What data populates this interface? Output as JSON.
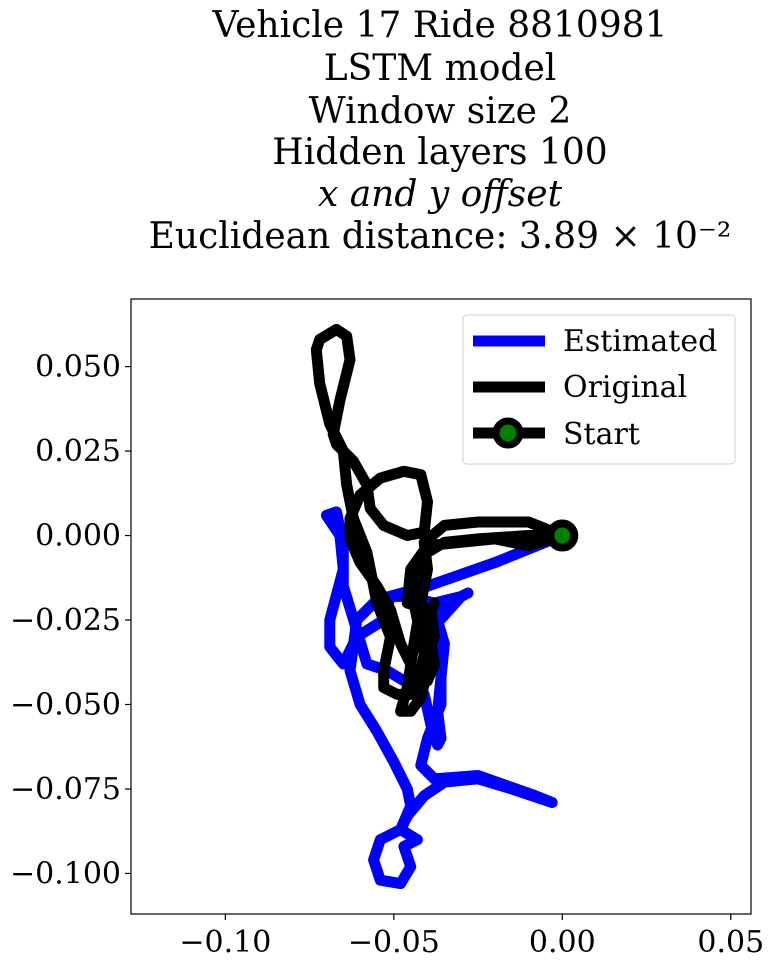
{
  "chart_data": {
    "type": "line",
    "title_lines": [
      "Vehicle 17 Ride 8810981",
      "LSTM model",
      "Window size 2",
      "Hidden layers 100",
      "x and y offset",
      "Euclidean distance: 3.89 × 10⁻²"
    ],
    "xlabel": "",
    "ylabel": "",
    "xlim": [
      -0.128,
      0.056
    ],
    "ylim": [
      -0.112,
      0.07
    ],
    "x_ticks": [
      {
        "value": -0.1,
        "label": "−0.10"
      },
      {
        "value": -0.05,
        "label": "−0.05"
      },
      {
        "value": 0.0,
        "label": "0.00"
      },
      {
        "value": 0.05,
        "label": "0.05"
      }
    ],
    "y_ticks": [
      {
        "value": 0.05,
        "label": "0.050"
      },
      {
        "value": 0.025,
        "label": "0.025"
      },
      {
        "value": 0.0,
        "label": "0.000"
      },
      {
        "value": -0.025,
        "label": "−0.025"
      },
      {
        "value": -0.05,
        "label": "−0.050"
      },
      {
        "value": -0.075,
        "label": "−0.075"
      },
      {
        "value": -0.1,
        "label": "−0.100"
      }
    ],
    "grid": false,
    "legend_position": "top-right",
    "series": [
      {
        "name": "Estimated",
        "color": "#0000ff",
        "points": [
          [
            0.0,
            0.0
          ],
          [
            -0.02,
            -0.008
          ],
          [
            -0.04,
            -0.015
          ],
          [
            -0.055,
            -0.019
          ],
          [
            -0.061,
            -0.025
          ],
          [
            -0.063,
            -0.04
          ],
          [
            -0.06,
            -0.05
          ],
          [
            -0.055,
            -0.058
          ],
          [
            -0.05,
            -0.067
          ],
          [
            -0.046,
            -0.075
          ],
          [
            -0.045,
            -0.08
          ],
          [
            -0.048,
            -0.087
          ],
          [
            -0.054,
            -0.09
          ],
          [
            -0.056,
            -0.096
          ],
          [
            -0.054,
            -0.102
          ],
          [
            -0.048,
            -0.103
          ],
          [
            -0.045,
            -0.098
          ],
          [
            -0.047,
            -0.092
          ],
          [
            -0.043,
            -0.09
          ],
          [
            -0.048,
            -0.087
          ],
          [
            -0.046,
            -0.083
          ],
          [
            -0.041,
            -0.077
          ],
          [
            -0.035,
            -0.073
          ],
          [
            -0.025,
            -0.072
          ],
          [
            -0.015,
            -0.075
          ],
          [
            -0.003,
            -0.079
          ],
          [
            -0.008,
            -0.077
          ],
          [
            -0.025,
            -0.071
          ],
          [
            -0.038,
            -0.072
          ],
          [
            -0.042,
            -0.068
          ],
          [
            -0.04,
            -0.06
          ],
          [
            -0.036,
            -0.05
          ],
          [
            -0.036,
            -0.038
          ],
          [
            -0.039,
            -0.028
          ],
          [
            -0.03,
            -0.018
          ],
          [
            -0.038,
            -0.02
          ],
          [
            -0.046,
            -0.018
          ],
          [
            -0.051,
            -0.018
          ],
          [
            -0.053,
            -0.025
          ],
          [
            -0.061,
            -0.03
          ],
          [
            -0.065,
            -0.038
          ],
          [
            -0.069,
            -0.033
          ],
          [
            -0.069,
            -0.025
          ],
          [
            -0.065,
            -0.01
          ],
          [
            -0.066,
            0.0
          ],
          [
            -0.07,
            0.006
          ],
          [
            -0.067,
            0.007
          ],
          [
            -0.065,
            -0.003
          ],
          [
            -0.065,
            -0.015
          ],
          [
            -0.061,
            -0.028
          ],
          [
            -0.058,
            -0.038
          ],
          [
            -0.052,
            -0.04
          ],
          [
            -0.047,
            -0.043
          ],
          [
            -0.041,
            -0.047
          ],
          [
            -0.039,
            -0.056
          ],
          [
            -0.037,
            -0.062
          ],
          [
            -0.036,
            -0.06
          ],
          [
            -0.037,
            -0.052
          ],
          [
            -0.036,
            -0.042
          ],
          [
            -0.035,
            -0.032
          ],
          [
            -0.038,
            -0.022
          ],
          [
            -0.028,
            -0.017
          ]
        ]
      },
      {
        "name": "Original",
        "color": "#000000",
        "points": [
          [
            0.0,
            0.0
          ],
          [
            -0.01,
            0.004
          ],
          [
            -0.025,
            0.004
          ],
          [
            -0.035,
            0.003
          ],
          [
            -0.041,
            -0.002
          ],
          [
            -0.04,
            -0.01
          ],
          [
            -0.042,
            -0.02
          ],
          [
            -0.044,
            -0.032
          ],
          [
            -0.046,
            -0.045
          ],
          [
            -0.048,
            -0.052
          ],
          [
            -0.045,
            -0.052
          ],
          [
            -0.042,
            -0.048
          ],
          [
            -0.04,
            -0.04
          ],
          [
            -0.042,
            -0.03
          ],
          [
            -0.044,
            -0.02
          ],
          [
            -0.043,
            -0.01
          ],
          [
            -0.04,
            -0.005
          ],
          [
            -0.035,
            -0.002
          ],
          [
            -0.025,
            -0.001
          ],
          [
            -0.01,
            0.0
          ],
          [
            0.0,
            0.0
          ],
          [
            -0.01,
            -0.003
          ],
          [
            -0.02,
            -0.001
          ],
          [
            -0.04,
            -0.003
          ],
          [
            -0.045,
            -0.01
          ],
          [
            -0.046,
            -0.02
          ],
          [
            -0.039,
            -0.022
          ],
          [
            -0.038,
            -0.03
          ],
          [
            -0.041,
            -0.035
          ],
          [
            -0.043,
            -0.045
          ],
          [
            -0.045,
            -0.047
          ],
          [
            -0.049,
            -0.047
          ],
          [
            -0.053,
            -0.045
          ],
          [
            -0.053,
            -0.04
          ],
          [
            -0.051,
            -0.03
          ],
          [
            -0.055,
            -0.02
          ],
          [
            -0.058,
            -0.005
          ],
          [
            -0.062,
            0.005
          ],
          [
            -0.064,
            0.015
          ],
          [
            -0.065,
            0.025
          ],
          [
            -0.069,
            0.033
          ],
          [
            -0.072,
            0.045
          ],
          [
            -0.073,
            0.055
          ],
          [
            -0.072,
            0.058
          ],
          [
            -0.067,
            0.061
          ],
          [
            -0.064,
            0.059
          ],
          [
            -0.063,
            0.052
          ],
          [
            -0.066,
            0.04
          ],
          [
            -0.068,
            0.03
          ],
          [
            -0.067,
            0.027
          ],
          [
            -0.062,
            0.022
          ],
          [
            -0.058,
            0.015
          ],
          [
            -0.057,
            0.008
          ],
          [
            -0.053,
            0.003
          ],
          [
            -0.046,
            0.0
          ],
          [
            -0.041,
            0.001
          ],
          [
            -0.04,
            0.01
          ],
          [
            -0.042,
            0.018
          ],
          [
            -0.047,
            0.019
          ],
          [
            -0.054,
            0.017
          ],
          [
            -0.06,
            0.012
          ],
          [
            -0.063,
            0.005
          ],
          [
            -0.063,
            -0.001
          ],
          [
            -0.06,
            -0.008
          ],
          [
            -0.055,
            -0.015
          ],
          [
            -0.051,
            -0.022
          ],
          [
            -0.048,
            -0.032
          ],
          [
            -0.044,
            -0.04
          ],
          [
            -0.04,
            -0.043
          ],
          [
            -0.038,
            -0.038
          ],
          [
            -0.04,
            -0.025
          ],
          [
            -0.038,
            -0.02
          ]
        ]
      }
    ],
    "start": {
      "name": "Start",
      "point": [
        0.0,
        0.0
      ],
      "edge_color": "#000000",
      "face_color": "#008000"
    },
    "legend": [
      {
        "label": "Estimated",
        "style": "line",
        "color": "#0000ff"
      },
      {
        "label": "Original",
        "style": "line",
        "color": "#000000"
      },
      {
        "label": "Start",
        "style": "marker",
        "color": "#000000",
        "face_color": "#008000"
      }
    ]
  }
}
